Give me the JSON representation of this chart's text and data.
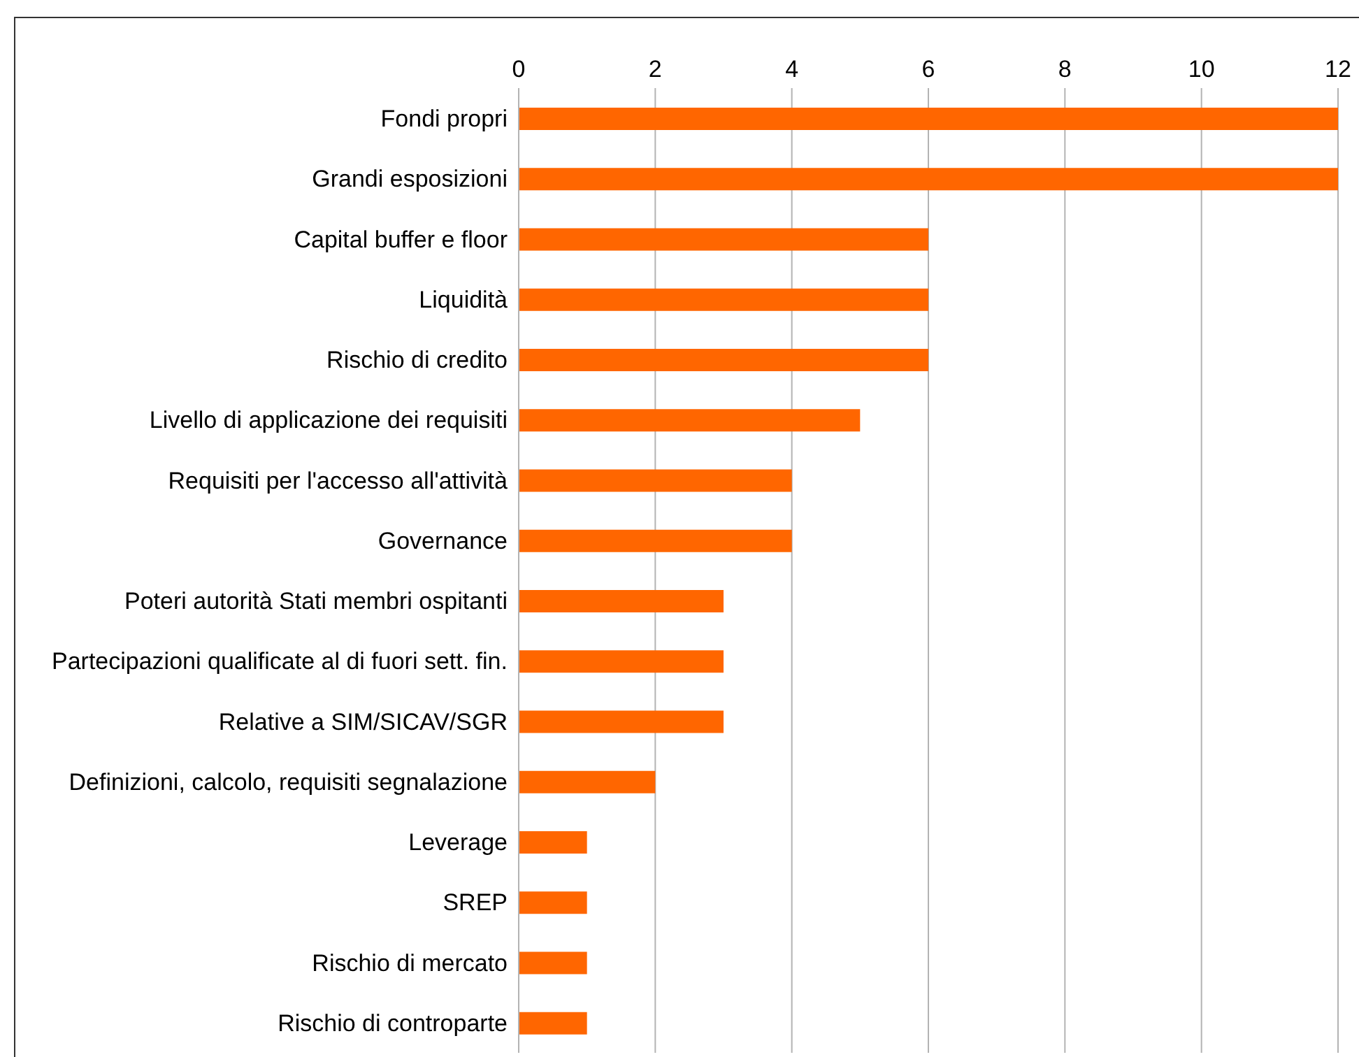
{
  "chart_data": {
    "type": "bar",
    "orientation": "horizontal",
    "categories": [
      "Fondi propri",
      "Grandi esposizioni",
      "Capital buffer e floor",
      "Liquidità",
      "Rischio di credito",
      "Livello di applicazione dei requisiti",
      "Requisiti per l'accesso all'attività",
      "Governance",
      "Poteri autorità Stati membri ospitanti",
      "Partecipazioni qualificate al di fuori sett. fin.",
      "Relative a SIM/SICAV/SGR",
      "Definizioni, calcolo, requisiti segnalazione",
      "Leverage",
      "SREP",
      "Rischio di mercato",
      "Rischio di controparte"
    ],
    "values": [
      12,
      12,
      6,
      6,
      6,
      5,
      4,
      4,
      3,
      3,
      3,
      2,
      1,
      1,
      1,
      1
    ],
    "color": "#ff6600",
    "xlim": [
      0,
      12
    ],
    "xticks": [
      0,
      2,
      4,
      6,
      8,
      10,
      12
    ],
    "grid": "x"
  }
}
